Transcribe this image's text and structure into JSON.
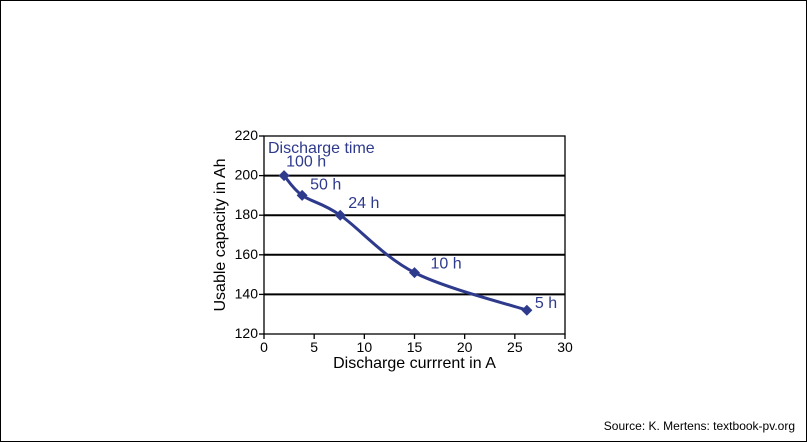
{
  "source": "Source: K. Mertens: textbook-pv.org",
  "colors": {
    "series": "#2e3a8c",
    "grid": "#000000",
    "text": "#000000"
  },
  "chart_data": {
    "type": "line",
    "title": "",
    "xlabel": "Discharge currrent in A",
    "ylabel": "Usable capacity in Ah",
    "xlim": [
      0,
      30
    ],
    "ylim": [
      120,
      220
    ],
    "xticks": [
      0,
      5,
      10,
      15,
      20,
      25,
      30
    ],
    "yticks": [
      120,
      140,
      160,
      180,
      200,
      220
    ],
    "grid": "horizontal",
    "legend_title": "Discharge time",
    "series": [
      {
        "x": [
          2,
          3.8,
          7.6,
          15,
          26.2
        ],
        "y": [
          200,
          190,
          180,
          151,
          132
        ],
        "point_labels": [
          "100 h",
          "50 h",
          "24 h",
          "10 h",
          "5 h"
        ]
      }
    ]
  }
}
